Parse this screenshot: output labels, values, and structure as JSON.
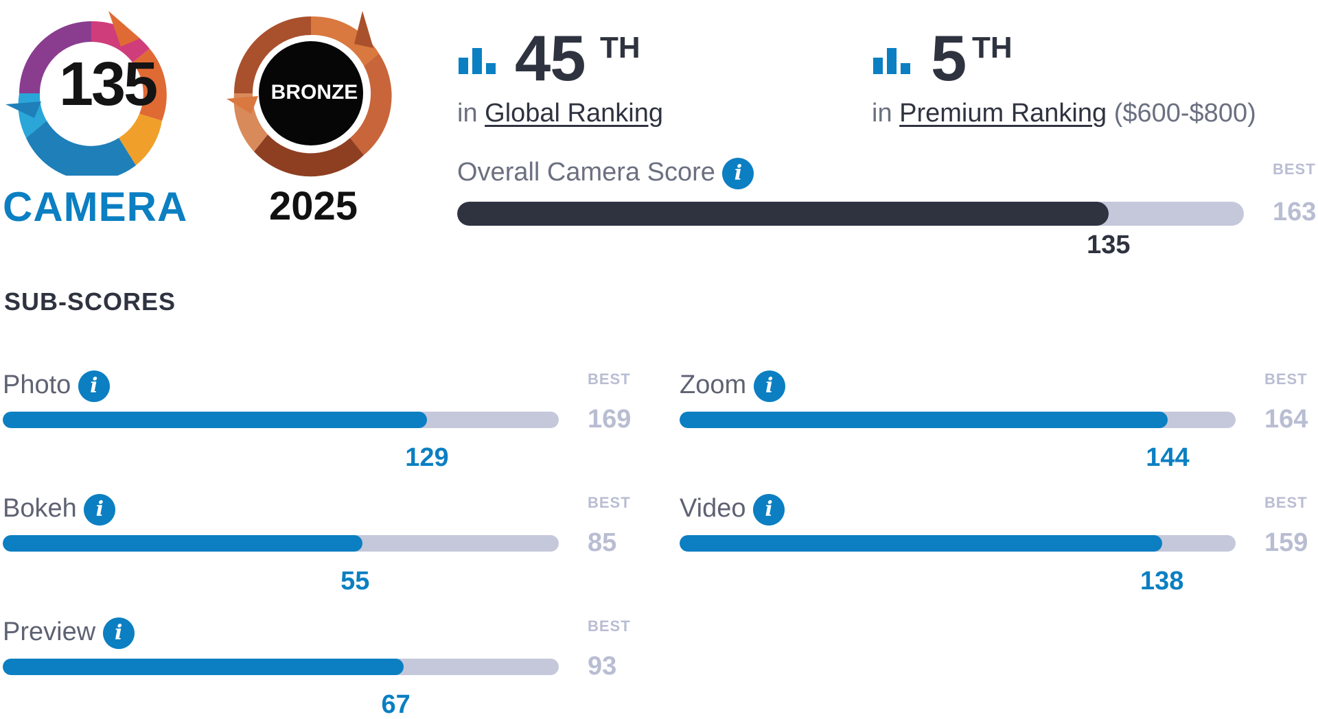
{
  "badges": {
    "score": "135",
    "category": "CAMERA",
    "medal": "BRONZE",
    "year": "2025"
  },
  "rankings": [
    {
      "number": "45",
      "suffix": "TH",
      "prefix": "in",
      "link": "Global Ranking",
      "extra": ""
    },
    {
      "number": "5",
      "suffix": "TH",
      "prefix": "in",
      "link": "Premium Ranking",
      "extra": "($600-$800)"
    }
  ],
  "overall": {
    "label": "Overall Camera Score",
    "score": 135,
    "best_label": "BEST",
    "best": 163
  },
  "subscores_title": "SUB-SCORES",
  "subscores": [
    {
      "name": "Photo",
      "score": 129,
      "best_label": "BEST",
      "best": 169
    },
    {
      "name": "Zoom",
      "score": 144,
      "best_label": "BEST",
      "best": 164
    },
    {
      "name": "Bokeh",
      "score": 55,
      "best_label": "BEST",
      "best": 85
    },
    {
      "name": "Video",
      "score": 138,
      "best_label": "BEST",
      "best": 159
    },
    {
      "name": "Preview",
      "score": 67,
      "best_label": "BEST",
      "best": 93
    }
  ],
  "icons": {
    "info": "info-icon",
    "ranking": "bar-chart-icon"
  },
  "colors": {
    "accent": "#0b7fc2",
    "dark": "#2f3340",
    "track": "#c5c8da",
    "best": "#b9bdd2",
    "bronze": "#c8653a"
  }
}
